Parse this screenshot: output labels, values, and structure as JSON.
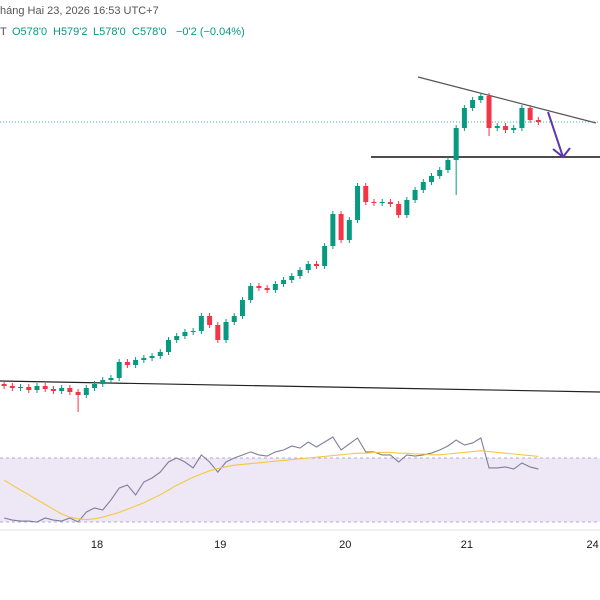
{
  "header": {
    "date": "háng Hai 23, 2026 16:53 UTC+7",
    "symbol": "T",
    "ohlc": [
      "O578'0",
      "H579'2",
      "L578'0",
      "C578'0"
    ],
    "change": "−0'2 (−0.04%)"
  },
  "chart_data": {
    "type": "candlestick",
    "x": [
      0,
      1,
      2,
      3,
      4,
      5,
      6,
      7,
      8,
      9,
      10,
      11,
      12,
      13,
      14,
      15,
      16,
      17,
      18,
      19,
      20,
      21,
      22,
      23,
      24,
      25,
      26,
      27,
      28,
      29,
      30,
      31,
      32,
      33,
      34,
      35,
      36,
      37,
      38,
      39,
      40,
      41,
      42,
      43,
      44,
      45,
      46,
      47,
      48,
      49,
      50,
      51,
      52,
      53,
      54,
      55,
      56,
      57,
      58,
      59,
      60,
      61,
      62,
      63,
      64,
      65
    ],
    "open": [
      551.8,
      551.6,
      551.4,
      551.5,
      551.2,
      551.6,
      551.3,
      551.1,
      551.4,
      551.0,
      550.7,
      551.4,
      551.8,
      552.2,
      552.4,
      554.0,
      553.7,
      554.2,
      554.4,
      554.6,
      555.0,
      556.2,
      556.6,
      557.0,
      557.1,
      558.6,
      557.7,
      556.2,
      558.0,
      558.6,
      560.2,
      561.6,
      561.4,
      561.2,
      561.8,
      562.2,
      562.6,
      563.2,
      563.8,
      563.6,
      565.6,
      568.8,
      566.2,
      568.2,
      571.6,
      570.0,
      569.9,
      570.0,
      569.8,
      568.7,
      570.2,
      571.2,
      572.0,
      572.6,
      573.2,
      574.2,
      577.4,
      579.4,
      580.2,
      580.6,
      577.4,
      577.6,
      577.2,
      577.4,
      579.4,
      578.2
    ],
    "high": [
      552.1,
      551.9,
      551.8,
      551.8,
      551.9,
      551.9,
      551.6,
      551.7,
      551.7,
      551.3,
      551.7,
      552.1,
      552.5,
      552.7,
      554.3,
      554.3,
      554.5,
      554.7,
      554.9,
      555.3,
      556.5,
      556.9,
      557.3,
      557.4,
      558.9,
      558.9,
      558.0,
      558.3,
      558.9,
      560.5,
      561.9,
      561.9,
      561.7,
      562.1,
      562.5,
      562.9,
      563.5,
      564.1,
      564.1,
      565.9,
      569.1,
      569.1,
      568.5,
      571.9,
      571.9,
      570.3,
      570.3,
      570.3,
      570.1,
      570.5,
      571.5,
      572.3,
      572.9,
      573.5,
      574.5,
      577.7,
      579.7,
      580.5,
      580.9,
      580.9,
      577.9,
      577.9,
      577.7,
      579.7,
      579.7,
      578.5
    ],
    "low": [
      551.3,
      551.1,
      551.1,
      550.9,
      550.9,
      551.0,
      550.8,
      550.8,
      550.7,
      549.0,
      550.4,
      551.1,
      551.5,
      551.9,
      552.1,
      553.4,
      553.4,
      553.9,
      554.1,
      554.3,
      554.7,
      555.9,
      556.3,
      556.7,
      556.8,
      557.4,
      555.9,
      555.9,
      557.7,
      558.3,
      559.9,
      561.1,
      560.9,
      560.9,
      561.5,
      561.9,
      562.3,
      562.9,
      563.3,
      563.3,
      565.3,
      565.9,
      565.9,
      567.9,
      569.7,
      569.6,
      569.6,
      569.5,
      568.4,
      568.4,
      569.9,
      570.9,
      571.7,
      572.3,
      572.9,
      570.7,
      577.1,
      579.1,
      579.9,
      576.6,
      577.1,
      576.9,
      576.9,
      577.1,
      577.9,
      577.7
    ],
    "close": [
      551.6,
      551.4,
      551.5,
      551.2,
      551.6,
      551.3,
      551.1,
      551.4,
      551.0,
      550.7,
      551.4,
      551.8,
      552.2,
      552.4,
      554.0,
      553.7,
      554.2,
      554.4,
      554.6,
      555.0,
      556.2,
      556.6,
      557.0,
      557.1,
      558.6,
      557.7,
      556.2,
      558.0,
      558.6,
      560.2,
      561.6,
      561.4,
      561.2,
      561.8,
      562.2,
      562.6,
      563.2,
      563.8,
      563.6,
      565.6,
      568.8,
      566.2,
      568.2,
      571.6,
      570.0,
      569.9,
      570.0,
      569.8,
      568.7,
      570.2,
      571.2,
      572.0,
      572.6,
      573.2,
      574.2,
      577.4,
      579.4,
      580.2,
      580.6,
      577.4,
      577.6,
      577.2,
      577.4,
      579.4,
      578.2,
      578.0
    ],
    "up_color": "#089981",
    "down_color": "#f23645",
    "price_line_color": "#089981",
    "xlim": [
      -0.5,
      72.5
    ],
    "xticks": [
      {
        "value": 11.3,
        "label": "18"
      },
      {
        "value": 26.3,
        "label": "19"
      },
      {
        "value": 41.5,
        "label": "20"
      },
      {
        "value": 56.3,
        "label": "21"
      },
      {
        "value": 71.6,
        "label": "24"
      }
    ],
    "ylim": [
      547,
      586
    ],
    "indicator": {
      "type": "line",
      "ylim": [
        25,
        90
      ],
      "band": [
        30,
        70
      ],
      "band_color": "#ede7f6",
      "series": [
        {
          "color": "#7e7e9a",
          "values": [
            32.5,
            31.2,
            30.6,
            30.6,
            30.0,
            32.5,
            31.2,
            30.6,
            32.5,
            30.0,
            36.2,
            38.8,
            37.5,
            43.8,
            51.2,
            53.1,
            46.9,
            55.0,
            57.5,
            61.2,
            67.5,
            70.0,
            67.5,
            63.8,
            71.9,
            67.5,
            61.2,
            67.5,
            70.0,
            71.9,
            73.8,
            71.9,
            71.2,
            73.8,
            75.0,
            77.5,
            76.2,
            80.0,
            76.9,
            80.0,
            83.1,
            75.0,
            78.8,
            82.5,
            73.8,
            73.8,
            71.9,
            71.9,
            67.5,
            71.9,
            71.2,
            71.9,
            73.1,
            75.0,
            77.5,
            81.2,
            78.1,
            79.4,
            82.5,
            63.8,
            63.8,
            64.4,
            63.1,
            66.9,
            64.4,
            63.1
          ]
        },
        {
          "color": "#f5c842",
          "values": [
            56.2,
            53,
            50,
            47,
            44,
            41,
            38,
            35,
            33,
            32,
            31.5,
            32,
            33,
            34.5,
            36,
            38,
            40,
            42,
            44.5,
            47,
            50,
            53,
            55.5,
            58,
            60,
            62,
            63.5,
            64.5,
            65.5,
            66,
            66.5,
            67,
            67.5,
            68,
            68.5,
            69,
            69.5,
            70,
            70.5,
            71,
            71.5,
            72,
            72.5,
            73,
            73,
            73.5,
            73.5,
            73.5,
            73,
            73,
            72.5,
            72.5,
            72,
            72,
            72.5,
            73,
            73.5,
            74,
            74.5,
            74,
            73.5,
            73,
            72.5,
            72,
            71.5,
            71
          ]
        }
      ]
    }
  }
}
